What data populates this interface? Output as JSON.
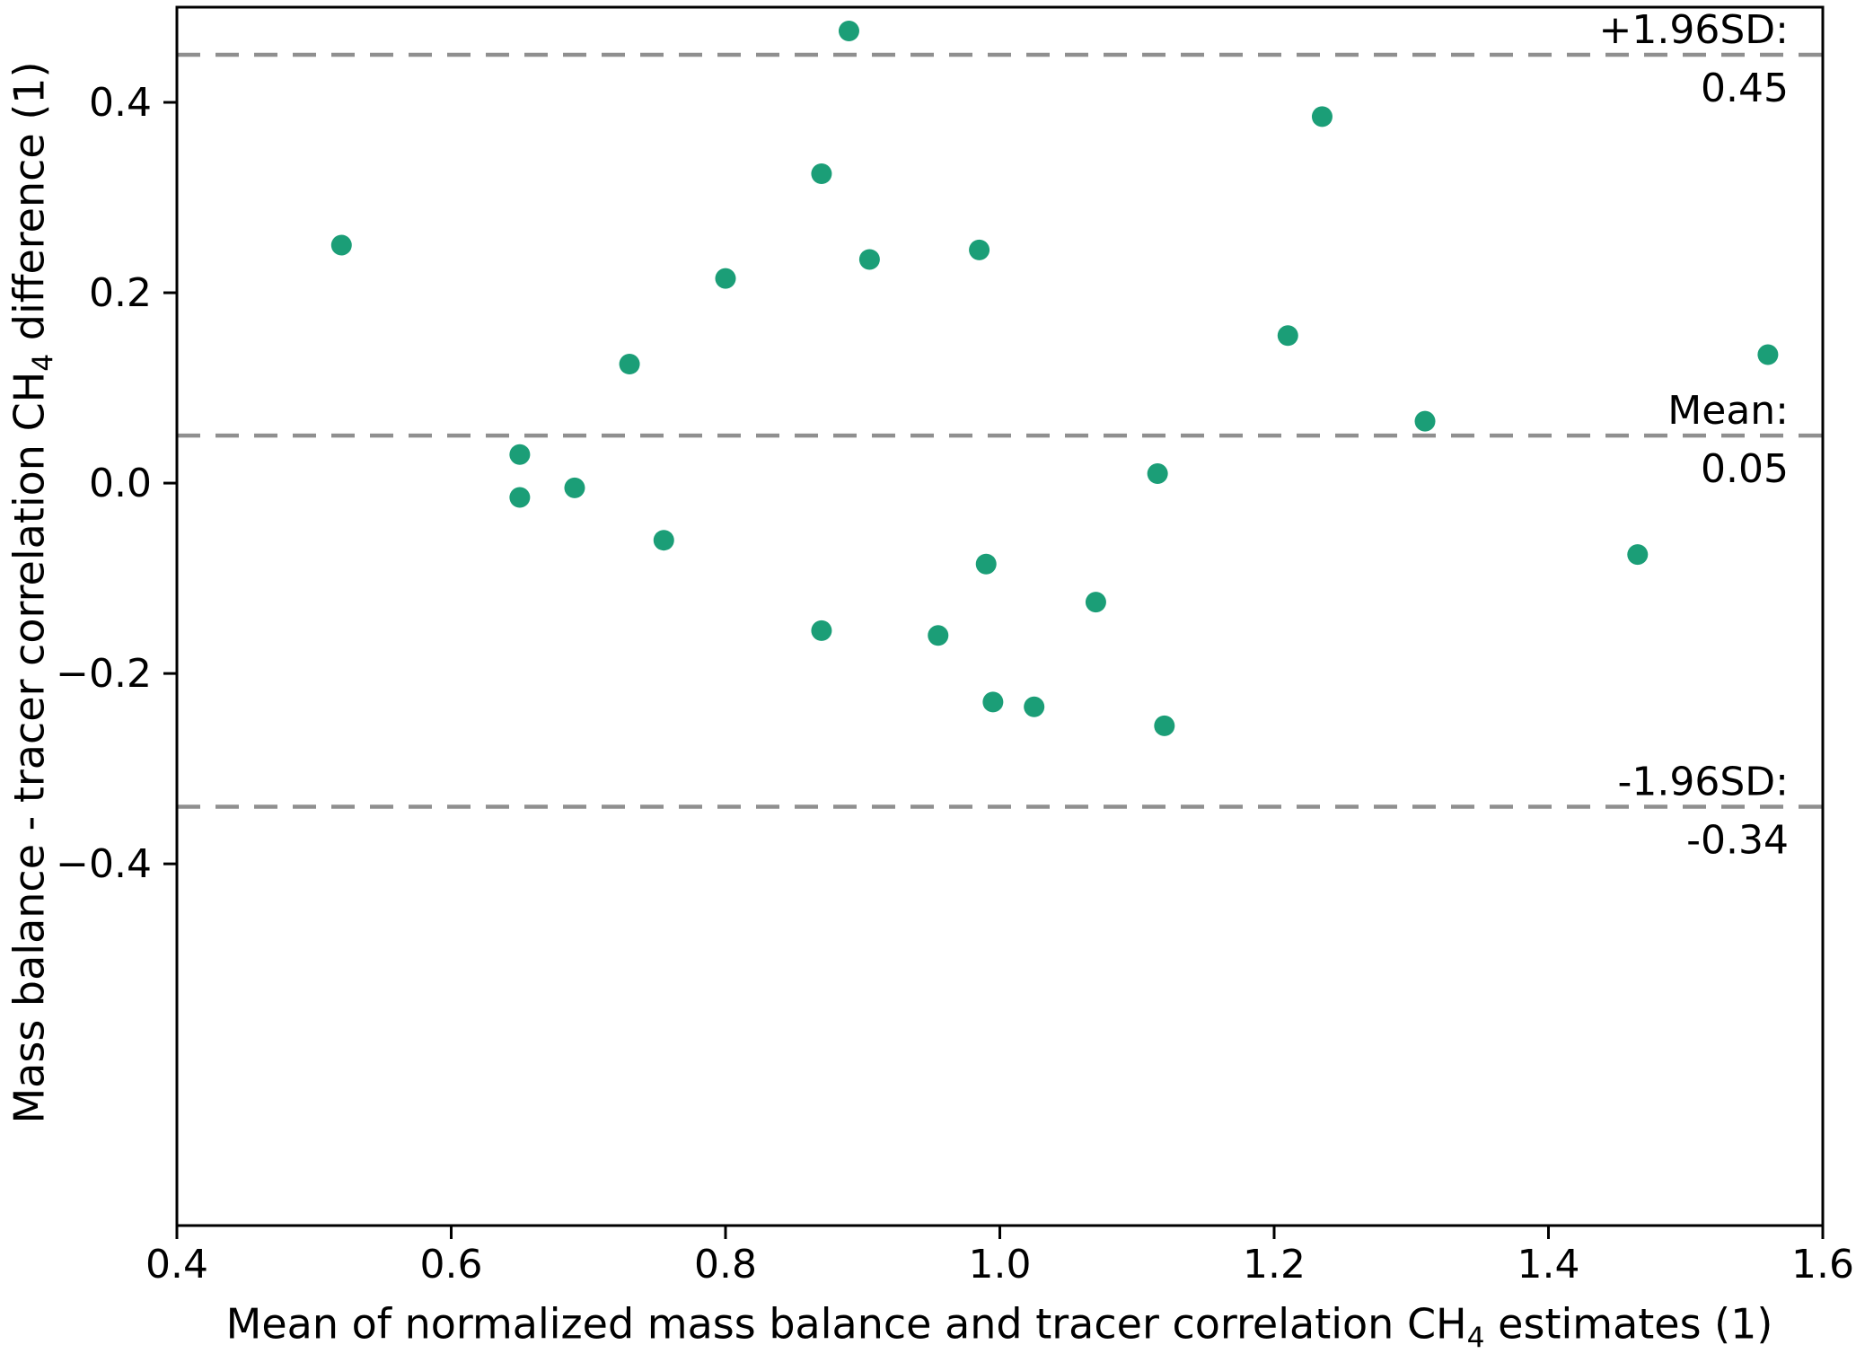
{
  "chart_data": {
    "type": "scatter",
    "title": "",
    "xlabel_pre": "Mean of normalized mass balance and tracer correlation CH",
    "xlabel_sub": "4",
    "xlabel_post": " estimates (1)",
    "ylabel_pre": "Mass balance - tracer correlation CH",
    "ylabel_sub": "4",
    "ylabel_post": " difference (1)",
    "xlim": [
      0.4,
      1.6
    ],
    "ylim": [
      -0.78,
      0.5
    ],
    "xticks": [
      0.4,
      0.6,
      0.8,
      1.0,
      1.2,
      1.4,
      1.6
    ],
    "xtick_labels": [
      "0.4",
      "0.6",
      "0.8",
      "1.0",
      "1.2",
      "1.4",
      "1.6"
    ],
    "yticks": [
      0.4,
      0.2,
      0.0,
      -0.2,
      -0.4
    ],
    "ytick_labels": [
      "0.4",
      "0.2",
      "0.0",
      "−0.2",
      "−0.4"
    ],
    "grid": false,
    "legend": null,
    "marker_color": "#1b9e77",
    "reference_line_color": "#8f8f8f",
    "reference_lines": [
      {
        "id": "upper",
        "value": 0.45,
        "label": "+1.96SD:",
        "value_label": "0.45"
      },
      {
        "id": "mean",
        "value": 0.05,
        "label": "Mean:",
        "value_label": "0.05"
      },
      {
        "id": "lower",
        "value": -0.34,
        "label": "-1.96SD:",
        "value_label": "-0.34"
      }
    ],
    "points": [
      [
        0.52,
        0.25
      ],
      [
        0.65,
        0.03
      ],
      [
        0.65,
        -0.015
      ],
      [
        0.69,
        -0.005
      ],
      [
        0.73,
        0.125
      ],
      [
        0.755,
        -0.06
      ],
      [
        0.8,
        0.215
      ],
      [
        0.87,
        0.325
      ],
      [
        0.87,
        -0.155
      ],
      [
        0.89,
        0.475
      ],
      [
        0.905,
        0.235
      ],
      [
        0.955,
        -0.16
      ],
      [
        0.985,
        0.245
      ],
      [
        0.99,
        -0.085
      ],
      [
        0.995,
        -0.23
      ],
      [
        1.025,
        -0.235
      ],
      [
        1.07,
        -0.125
      ],
      [
        1.115,
        0.01
      ],
      [
        1.12,
        -0.255
      ],
      [
        1.21,
        0.155
      ],
      [
        1.235,
        0.385
      ],
      [
        1.31,
        0.065
      ],
      [
        1.465,
        -0.075
      ],
      [
        1.56,
        0.135
      ]
    ]
  }
}
